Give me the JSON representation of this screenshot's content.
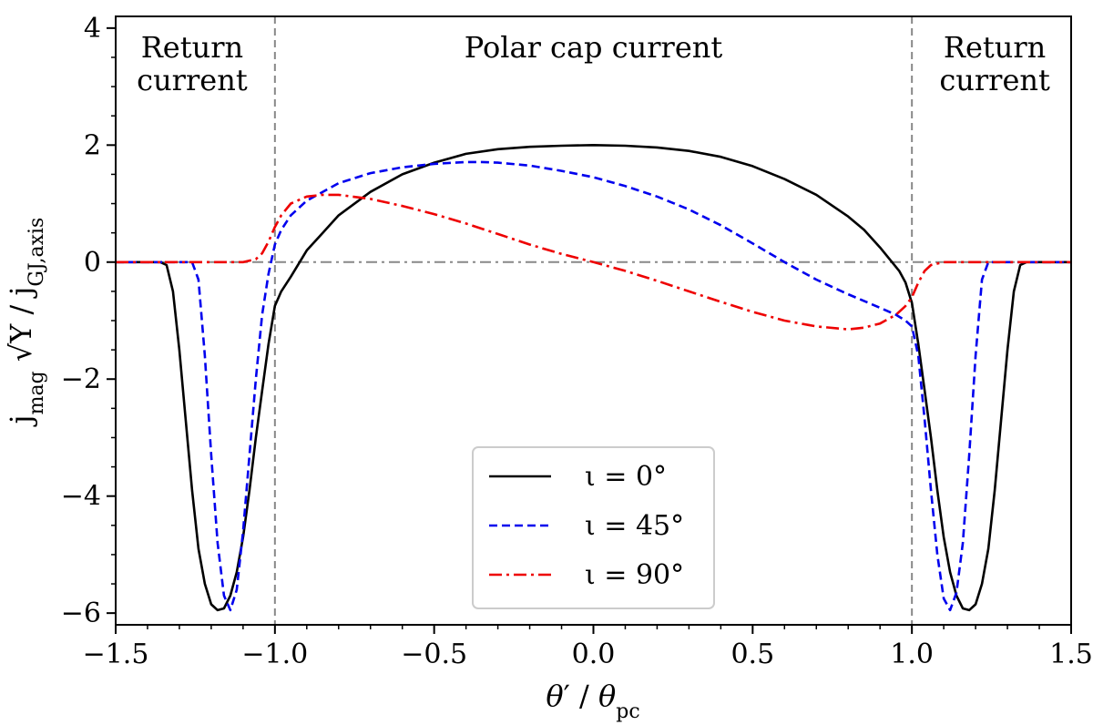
{
  "chart_data": {
    "type": "line",
    "xlabel": "θ′ / θ_pc",
    "ylabel": "j_mag √Υ / j_GJ,axis",
    "xlim": [
      -1.5,
      1.5
    ],
    "ylim": [
      -6.2,
      4.2
    ],
    "xticks": [
      -1.5,
      -1.0,
      -0.5,
      0.0,
      0.5,
      1.0,
      1.5
    ],
    "xtick_labels": [
      "−1.5",
      "−1.0",
      "−0.5",
      "0.0",
      "0.5",
      "1.0",
      "1.5"
    ],
    "yticks": [
      -6,
      -4,
      -2,
      0,
      2,
      4
    ],
    "ytick_labels": [
      "−6",
      "−4",
      "−2",
      "0",
      "2",
      "4"
    ],
    "grid": false,
    "legend_position": "bottom-center",
    "reference_lines": {
      "vertical": [
        -1.0,
        1.0
      ],
      "horizontal": [
        0
      ]
    },
    "annotations": [
      {
        "lines": [
          "Return",
          "current"
        ],
        "x": -1.26,
        "y": 3.5
      },
      {
        "lines": [
          "Polar cap current"
        ],
        "x": 0.0,
        "y": 3.5
      },
      {
        "lines": [
          "Return",
          "current"
        ],
        "x": 1.26,
        "y": 3.5
      }
    ],
    "series": [
      {
        "name": "ι = 0°",
        "color": "#000000",
        "style": "solid",
        "x": [
          -1.5,
          -1.36,
          -1.34,
          -1.32,
          -1.3,
          -1.28,
          -1.26,
          -1.24,
          -1.22,
          -1.2,
          -1.18,
          -1.16,
          -1.14,
          -1.12,
          -1.1,
          -1.08,
          -1.06,
          -1.04,
          -1.02,
          -1.0,
          -0.98,
          -0.95,
          -0.9,
          -0.85,
          -0.8,
          -0.7,
          -0.6,
          -0.5,
          -0.4,
          -0.3,
          -0.2,
          -0.1,
          0.0,
          0.1,
          0.2,
          0.3,
          0.4,
          0.5,
          0.6,
          0.7,
          0.8,
          0.85,
          0.9,
          0.93,
          0.96,
          0.98,
          1.0,
          1.02,
          1.04,
          1.06,
          1.08,
          1.1,
          1.12,
          1.14,
          1.16,
          1.18,
          1.2,
          1.22,
          1.24,
          1.26,
          1.28,
          1.3,
          1.32,
          1.34,
          1.36,
          1.5
        ],
        "y": [
          0,
          0,
          -0.05,
          -0.5,
          -1.5,
          -2.7,
          -3.9,
          -4.9,
          -5.5,
          -5.85,
          -5.95,
          -5.92,
          -5.7,
          -5.3,
          -4.7,
          -3.9,
          -3.0,
          -2.2,
          -1.4,
          -0.75,
          -0.5,
          -0.25,
          0.2,
          0.5,
          0.8,
          1.2,
          1.5,
          1.7,
          1.85,
          1.93,
          1.97,
          1.99,
          2.0,
          1.99,
          1.96,
          1.9,
          1.8,
          1.64,
          1.42,
          1.15,
          0.78,
          0.55,
          0.25,
          0.05,
          -0.15,
          -0.35,
          -0.7,
          -1.4,
          -2.2,
          -3.0,
          -3.9,
          -4.7,
          -5.3,
          -5.7,
          -5.92,
          -5.95,
          -5.85,
          -5.5,
          -4.9,
          -3.9,
          -2.7,
          -1.5,
          -0.5,
          -0.05,
          0,
          0
        ]
      },
      {
        "name": "ι = 45°",
        "color": "#0000ee",
        "style": "dashed",
        "x": [
          -1.5,
          -1.26,
          -1.24,
          -1.22,
          -1.2,
          -1.18,
          -1.16,
          -1.14,
          -1.12,
          -1.1,
          -1.08,
          -1.06,
          -1.04,
          -1.02,
          -1.0,
          -0.98,
          -0.95,
          -0.9,
          -0.8,
          -0.7,
          -0.6,
          -0.5,
          -0.4,
          -0.35,
          -0.3,
          -0.2,
          -0.1,
          0.0,
          0.1,
          0.2,
          0.3,
          0.4,
          0.5,
          0.6,
          0.7,
          0.8,
          0.9,
          0.95,
          0.98,
          1.0,
          1.02,
          1.04,
          1.06,
          1.08,
          1.1,
          1.12,
          1.14,
          1.16,
          1.18,
          1.2,
          1.22,
          1.24,
          1.26,
          1.5
        ],
        "y": [
          0,
          0,
          -0.3,
          -1.6,
          -3.3,
          -4.8,
          -5.7,
          -5.95,
          -5.6,
          -4.6,
          -3.3,
          -2.0,
          -0.9,
          -0.2,
          0.3,
          0.55,
          0.8,
          1.05,
          1.35,
          1.52,
          1.62,
          1.68,
          1.71,
          1.71,
          1.7,
          1.65,
          1.56,
          1.45,
          1.3,
          1.12,
          0.9,
          0.63,
          0.32,
          0.0,
          -0.3,
          -0.55,
          -0.78,
          -0.9,
          -1.0,
          -1.1,
          -1.6,
          -2.7,
          -3.9,
          -5.0,
          -5.75,
          -5.95,
          -5.65,
          -4.8,
          -3.3,
          -1.6,
          -0.3,
          0,
          0,
          0
        ]
      },
      {
        "name": "ι = 90°",
        "color": "#ee0000",
        "style": "dashdot",
        "x": [
          -1.5,
          -1.1,
          -1.06,
          -1.04,
          -1.02,
          -1.0,
          -0.98,
          -0.95,
          -0.9,
          -0.85,
          -0.8,
          -0.7,
          -0.6,
          -0.5,
          -0.4,
          -0.3,
          -0.2,
          -0.1,
          0.0,
          0.1,
          0.2,
          0.3,
          0.4,
          0.5,
          0.6,
          0.7,
          0.8,
          0.85,
          0.9,
          0.95,
          0.98,
          1.0,
          1.02,
          1.04,
          1.06,
          1.1,
          1.5
        ],
        "y": [
          0,
          0,
          0.05,
          0.15,
          0.35,
          0.6,
          0.8,
          1.0,
          1.12,
          1.15,
          1.15,
          1.08,
          0.96,
          0.82,
          0.66,
          0.48,
          0.3,
          0.14,
          0.0,
          -0.15,
          -0.32,
          -0.5,
          -0.68,
          -0.85,
          -1.0,
          -1.1,
          -1.15,
          -1.12,
          -1.05,
          -0.9,
          -0.75,
          -0.6,
          -0.35,
          -0.15,
          -0.05,
          0,
          0
        ]
      }
    ]
  }
}
